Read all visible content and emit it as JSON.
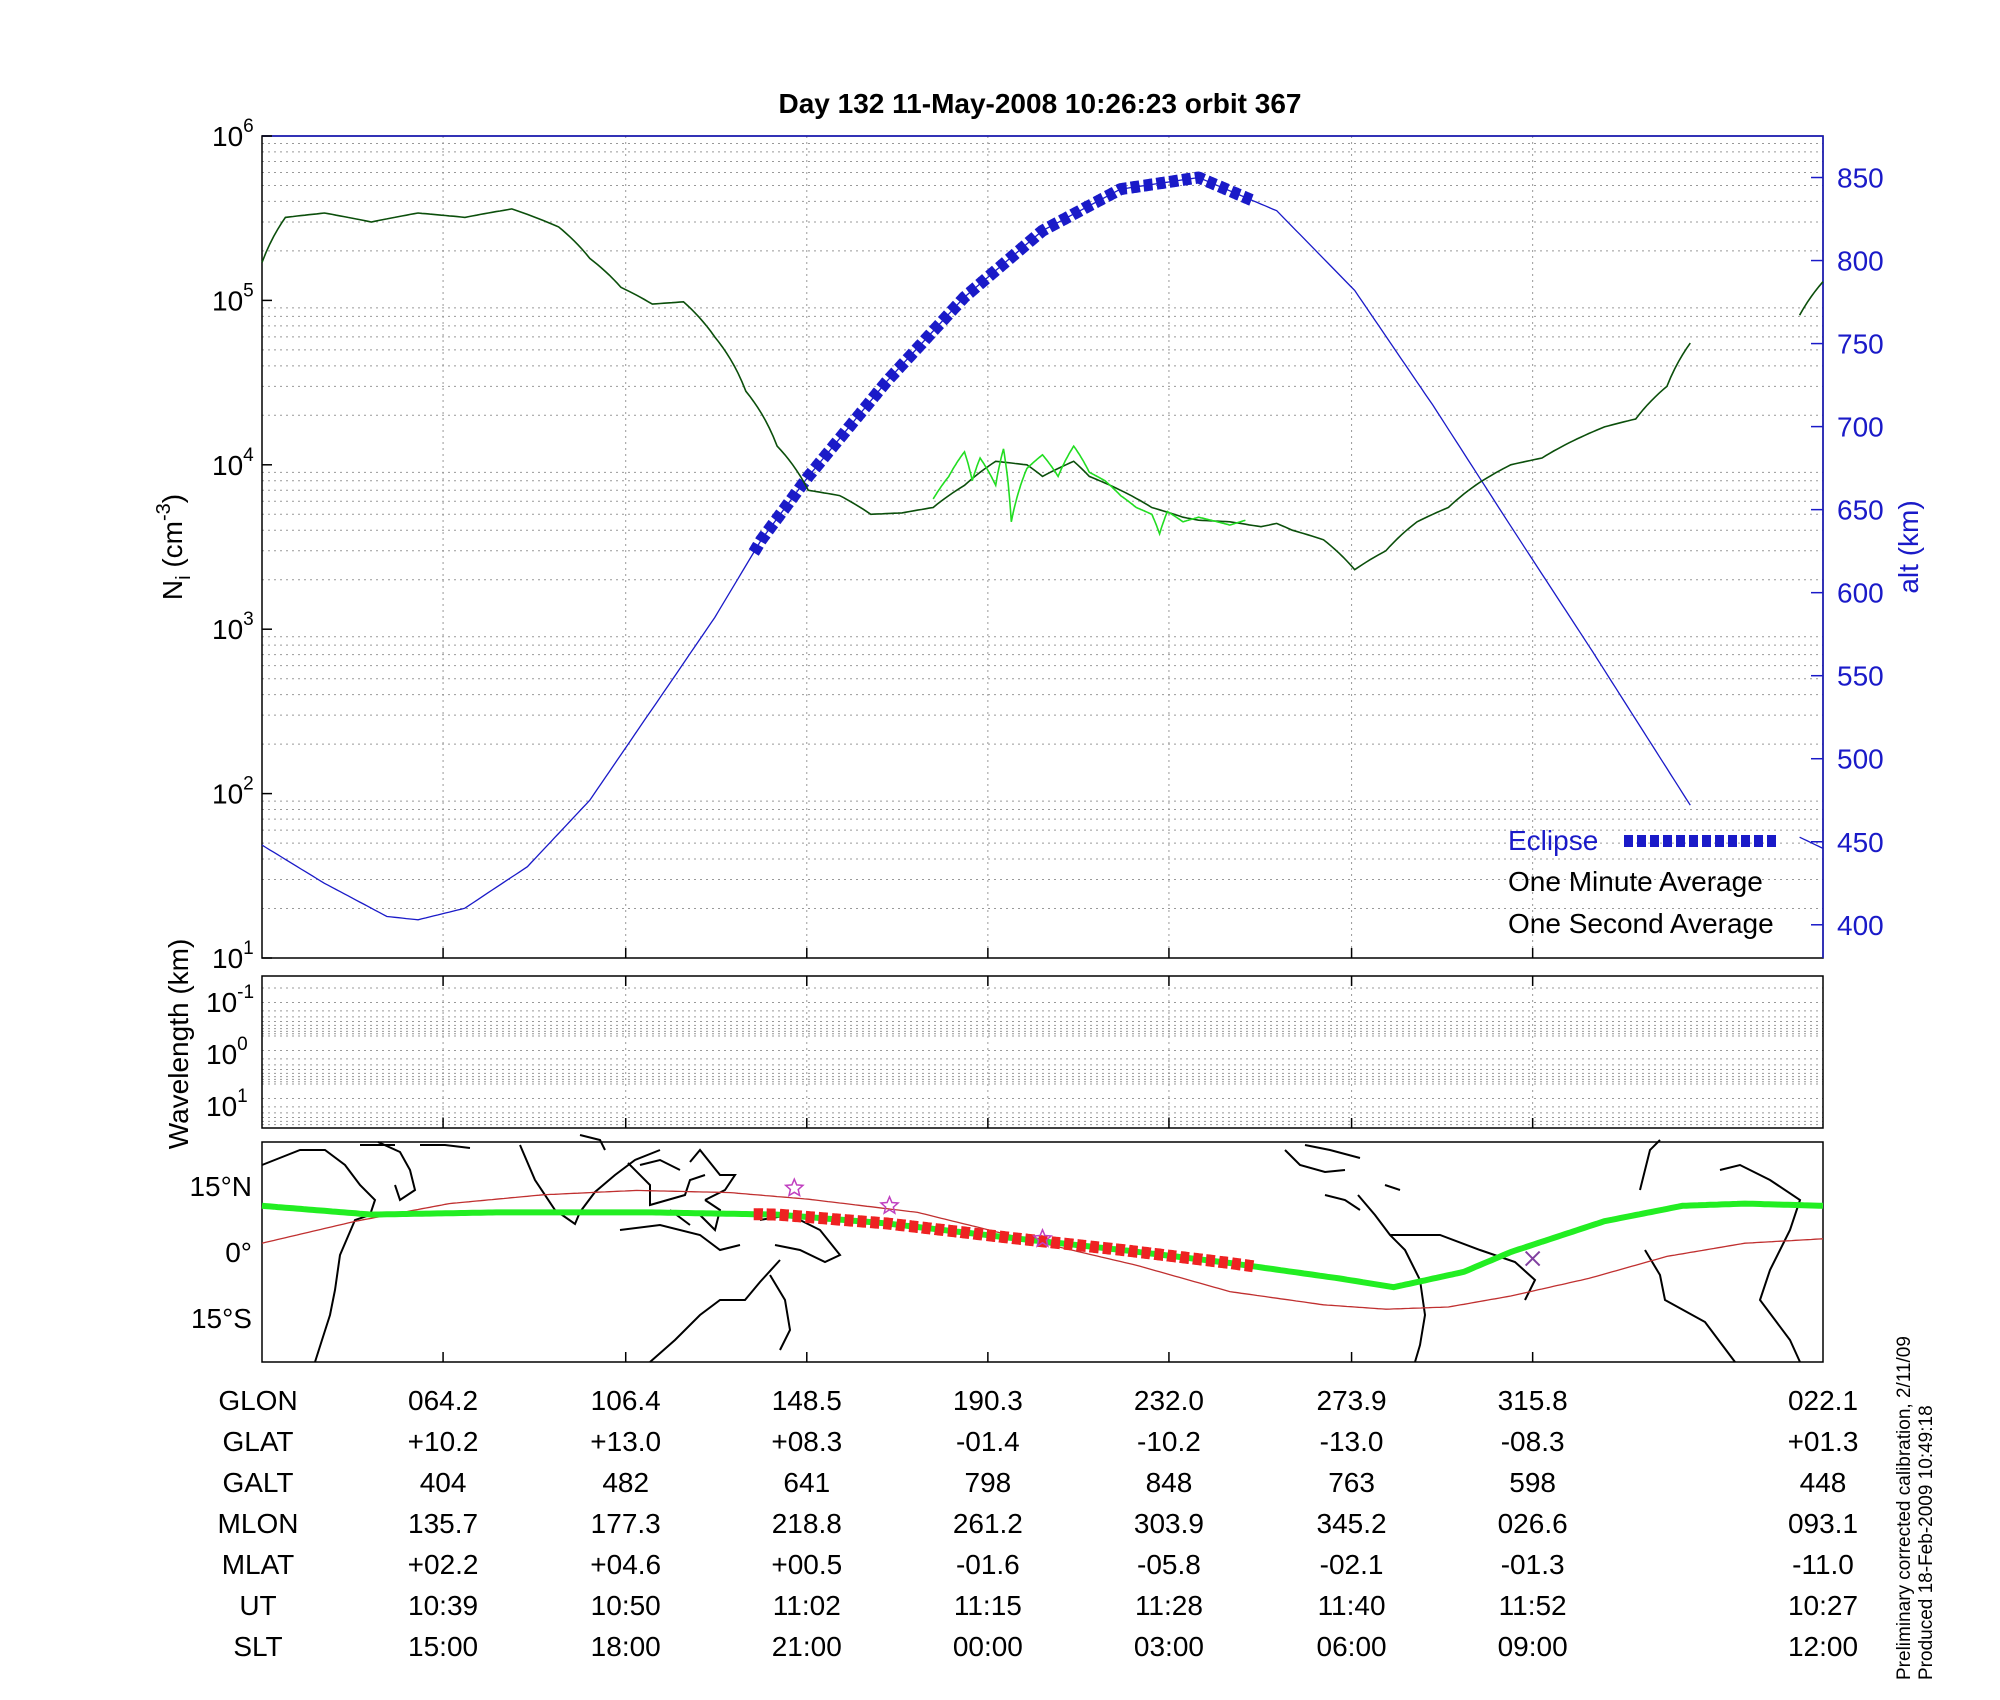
{
  "chart_data": [
    {
      "type": "line",
      "title": "Day 132  11-May-2008 10:26:23   orbit 367",
      "ylabel_left": "N",
      "ylabel_left_sub": "i",
      "ylabel_left_unit": "(cm",
      "ylabel_left_unit_exp": "-3",
      "ylabel_left_unit_close": ")",
      "ylabel_right": "alt (km)",
      "yscale_left": "log",
      "ylim_left": [
        10,
        1000000
      ],
      "left_ticks": [
        {
          "base": "10",
          "exp": "1",
          "value": 1
        },
        {
          "base": "10",
          "exp": "2",
          "value": 2
        },
        {
          "base": "10",
          "exp": "3",
          "value": 3
        },
        {
          "base": "10",
          "exp": "4",
          "value": 4
        },
        {
          "base": "10",
          "exp": "5",
          "value": 5
        },
        {
          "base": "10",
          "exp": "6",
          "value": 6
        }
      ],
      "ylim_right": [
        380,
        875
      ],
      "right_ticks": [
        "400",
        "450",
        "500",
        "550",
        "600",
        "650",
        "700",
        "750",
        "800",
        "850"
      ],
      "x_fraction_ticks": [
        0.116,
        0.233,
        0.349,
        0.465,
        0.581,
        0.698,
        0.814
      ],
      "legend": {
        "position": "bottom-right",
        "entries": [
          {
            "label": "Eclipse",
            "color": "#1a1ac8",
            "style": "thick-dashed"
          },
          {
            "label": "One Minute Average",
            "color": "#000000",
            "style": "line"
          },
          {
            "label": "One Second Average",
            "color": "#22dd22",
            "style": "line"
          }
        ]
      },
      "series": [
        {
          "name": "altitude",
          "axis": "right",
          "color": "#1a1ac8",
          "x": [
            0.0,
            0.04,
            0.08,
            0.1,
            0.13,
            0.17,
            0.21,
            0.25,
            0.29,
            0.32,
            0.35,
            0.4,
            0.45,
            0.5,
            0.55,
            0.6,
            0.65,
            0.7,
            0.75,
            0.8,
            0.85,
            0.915,
            0.98,
            1.0
          ],
          "y": [
            448,
            425,
            405,
            403,
            410,
            435,
            475,
            530,
            585,
            632,
            670,
            727,
            778,
            818,
            843,
            850,
            830,
            782,
            713,
            640,
            568,
            472,
            455,
            446
          ],
          "eclipse_range": [
            0.315,
            0.635
          ],
          "gaps": [
            [
              0.916,
              0.985
            ]
          ]
        },
        {
          "name": "Ni One Minute Average",
          "axis": "left",
          "color": "#0b4f0b",
          "x": [
            0.0,
            0.015,
            0.04,
            0.07,
            0.1,
            0.13,
            0.16,
            0.19,
            0.21,
            0.23,
            0.25,
            0.27,
            0.29,
            0.31,
            0.33,
            0.35,
            0.37,
            0.39,
            0.41,
            0.43,
            0.45,
            0.47,
            0.49,
            0.5,
            0.51,
            0.52,
            0.53,
            0.55,
            0.57,
            0.59,
            0.6,
            0.62,
            0.64,
            0.65,
            0.66,
            0.68,
            0.7,
            0.72,
            0.74,
            0.76,
            0.78,
            0.8,
            0.82,
            0.84,
            0.86,
            0.88,
            0.9,
            0.915,
            0.98,
            1.0
          ],
          "y": [
            170000,
            320000,
            340000,
            300000,
            340000,
            320000,
            360000,
            280000,
            180000,
            120000,
            95000,
            98000,
            60000,
            28000,
            13000,
            7000,
            6500,
            5000,
            5100,
            5500,
            7500,
            10500,
            10000,
            8500,
            9500,
            10500,
            8500,
            7000,
            5500,
            4800,
            4600,
            4500,
            4200,
            4400,
            4000,
            3500,
            2300,
            3000,
            4500,
            5500,
            7800,
            10000,
            11000,
            14000,
            17000,
            19000,
            30000,
            55000,
            65000,
            130000
          ],
          "gaps": [
            [
              0.916,
              0.985
            ]
          ]
        },
        {
          "name": "Ni One Second Average",
          "axis": "left",
          "color": "#22dd22",
          "x": [
            0.43,
            0.44,
            0.45,
            0.455,
            0.46,
            0.47,
            0.475,
            0.48,
            0.49,
            0.5,
            0.51,
            0.52,
            0.53,
            0.54,
            0.55,
            0.56,
            0.57,
            0.575,
            0.58,
            0.59,
            0.6,
            0.62,
            0.63
          ],
          "y": [
            6200,
            8500,
            12000,
            8000,
            11000,
            7500,
            12500,
            4500,
            9500,
            11500,
            8500,
            13000,
            9000,
            8000,
            6500,
            5500,
            5000,
            3800,
            5200,
            4500,
            4800,
            4300,
            4600
          ]
        }
      ]
    },
    {
      "type": "line",
      "ylabel": "Wavelength (km)",
      "yscale": "log",
      "ticks": [
        {
          "base": "10",
          "exp": "-1"
        },
        {
          "base": "10",
          "exp": "0"
        },
        {
          "base": "10",
          "exp": "1"
        }
      ],
      "series": []
    },
    {
      "type": "map",
      "lat_ticks": [
        "15°N",
        "0°",
        "15°S"
      ],
      "lat_range": [
        -25,
        25
      ],
      "series": [
        {
          "name": "magnetic equator",
          "color": "#c03030",
          "x": [
            0.0,
            0.06,
            0.12,
            0.18,
            0.24,
            0.3,
            0.35,
            0.42,
            0.5,
            0.56,
            0.62,
            0.68,
            0.72,
            0.76,
            0.8,
            0.85,
            0.9,
            0.95,
            1.0
          ],
          "lat": [
            2,
            7,
            11,
            13,
            14,
            13.5,
            12,
            9,
            2,
            -3,
            -9,
            -12,
            -13,
            -12.5,
            -10,
            -6,
            -1,
            2,
            3
          ]
        },
        {
          "name": "satellite ground track",
          "color": "#22ee22",
          "x": [
            0.0,
            0.07,
            0.15,
            0.25,
            0.33,
            0.4,
            0.48,
            0.55,
            0.62,
            0.69,
            0.725,
            0.77,
            0.8,
            0.86,
            0.91,
            0.95,
            1.0
          ],
          "lat": [
            10.5,
            8.5,
            9,
            9,
            8.5,
            6.5,
            3.2,
            0.5,
            -2.5,
            -6,
            -8,
            -4.5,
            0,
            7,
            10.5,
            11,
            10.5
          ],
          "eclipse_range": [
            0.315,
            0.635
          ],
          "eclipse_color": "#ee2222"
        }
      ],
      "markers": [
        {
          "x": 0.341,
          "lat": 14.5
        },
        {
          "x": 0.402,
          "lat": 10.5
        },
        {
          "x": 0.5,
          "lat": 3
        }
      ],
      "endpoint_marker": {
        "x": 0.814,
        "lat": -1.5
      }
    }
  ],
  "table": {
    "row_labels": [
      "GLON",
      "GLAT",
      "GALT",
      "MLON",
      "MLAT",
      "UT",
      "SLT"
    ],
    "columns": [
      [
        "064.2",
        "+10.2",
        "404",
        "135.7",
        "+02.2",
        "10:39",
        "15:00"
      ],
      [
        "106.4",
        "+13.0",
        "482",
        "177.3",
        "+04.6",
        "10:50",
        "18:00"
      ],
      [
        "148.5",
        "+08.3",
        "641",
        "218.8",
        "+00.5",
        "11:02",
        "21:00"
      ],
      [
        "190.3",
        "-01.4",
        "798",
        "261.2",
        "-01.6",
        "11:15",
        "00:00"
      ],
      [
        "232.0",
        "-10.2",
        "848",
        "303.9",
        "-05.8",
        "11:28",
        "03:00"
      ],
      [
        "273.9",
        "-13.0",
        "763",
        "345.2",
        "-02.1",
        "11:40",
        "06:00"
      ],
      [
        "315.8",
        "-08.3",
        "598",
        "026.6",
        "-01.3",
        "11:52",
        "09:00"
      ],
      [
        "022.1",
        "+01.3",
        "448",
        "093.1",
        "-11.0",
        "10:27",
        "12:00"
      ]
    ]
  },
  "footer": {
    "line1": "Preliminary corrected calibration, 2/11/09",
    "line2": "Produced 18-Feb-2009 10:49:18"
  }
}
